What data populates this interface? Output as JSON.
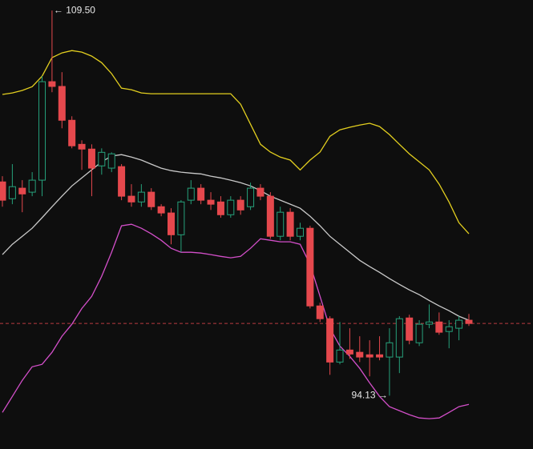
{
  "chart_data": {
    "type": "candlestick",
    "ylim": [
      92.0,
      109.92
    ],
    "up_color": "#26a17b",
    "down_color": "#e5484d",
    "open": [
      102.66,
      101.99,
      102.41,
      102.25,
      102.73,
      106.66,
      106.47,
      105.12,
      104.16,
      103.97,
      103.3,
      103.21,
      103.27,
      102.09,
      101.86,
      102.25,
      101.67,
      101.42,
      100.55,
      101.93,
      102.41,
      101.93,
      101.86,
      101.35,
      101.93,
      101.67,
      102.41,
      102.09,
      100.49,
      101.45,
      100.49,
      100.81,
      97.71,
      97.2,
      95.47,
      95.95,
      95.86,
      95.76,
      95.76,
      95.67,
      95.67,
      97.23,
      96.24,
      96.98,
      97.07,
      96.69,
      96.82,
      97.14
    ],
    "high": [
      102.89,
      103.37,
      102.73,
      103.05,
      106.88,
      109.5,
      107.04,
      105.28,
      104.32,
      104.16,
      104.0,
      103.84,
      103.37,
      102.57,
      102.57,
      102.41,
      101.77,
      101.61,
      101.93,
      102.73,
      102.57,
      102.25,
      102.09,
      102.09,
      102.09,
      102.63,
      102.57,
      102.25,
      101.67,
      101.61,
      101.03,
      100.91,
      97.84,
      97.3,
      97.07,
      96.82,
      96.5,
      96.34,
      96.5,
      96.82,
      97.3,
      97.36,
      97.14,
      97.77,
      97.45,
      97.14,
      97.3,
      97.39
    ],
    "low": [
      101.67,
      101.77,
      101.45,
      102.09,
      102.09,
      106.24,
      104.8,
      104.0,
      103.14,
      102.09,
      102.95,
      103.05,
      101.93,
      101.67,
      101.67,
      101.54,
      101.29,
      100.17,
      99.85,
      101.77,
      101.77,
      101.54,
      101.23,
      101.23,
      101.35,
      101.54,
      101.93,
      100.39,
      100.33,
      100.33,
      100.33,
      97.61,
      97.07,
      94.96,
      95.38,
      95.6,
      95.47,
      94.9,
      95.54,
      94.13,
      95.03,
      96.18,
      96.11,
      96.82,
      96.56,
      96.02,
      96.34,
      96.91
    ],
    "close": [
      101.93,
      102.47,
      102.18,
      102.73,
      106.66,
      106.47,
      105.12,
      104.1,
      103.97,
      103.21,
      103.84,
      103.78,
      102.09,
      101.86,
      102.25,
      101.67,
      101.42,
      100.55,
      101.86,
      102.41,
      101.93,
      101.77,
      101.35,
      101.93,
      101.54,
      102.41,
      102.09,
      100.49,
      101.45,
      100.49,
      100.81,
      97.71,
      97.2,
      95.47,
      95.95,
      95.79,
      95.67,
      95.67,
      95.67,
      96.24,
      97.2,
      96.34,
      96.98,
      97.07,
      96.66,
      96.88,
      97.14,
      97.01
    ],
    "bands": [
      {
        "color": "#e3cf1f",
        "values": [
          106.15,
          106.21,
          106.31,
          106.46,
          106.88,
          107.62,
          107.81,
          107.9,
          107.84,
          107.68,
          107.42,
          106.98,
          106.4,
          106.34,
          106.21,
          106.18,
          106.18,
          106.18,
          106.18,
          106.18,
          106.18,
          106.18,
          106.18,
          106.18,
          105.76,
          104.96,
          104.16,
          103.85,
          103.65,
          103.53,
          103.14,
          103.53,
          103.85,
          104.48,
          104.74,
          104.84,
          104.93,
          105.0,
          104.87,
          104.55,
          104.16,
          103.78,
          103.46,
          103.14,
          102.57,
          101.86,
          101.03,
          100.59
        ]
      },
      {
        "color": "#c9c9c9",
        "values": [
          99.76,
          100.17,
          100.49,
          100.81,
          101.23,
          101.67,
          102.09,
          102.5,
          102.82,
          103.14,
          103.46,
          103.69,
          103.75,
          103.65,
          103.53,
          103.37,
          103.21,
          103.11,
          103.05,
          103.01,
          102.98,
          102.89,
          102.82,
          102.73,
          102.63,
          102.5,
          102.31,
          102.09,
          101.93,
          101.77,
          101.61,
          101.29,
          100.91,
          100.49,
          100.17,
          99.85,
          99.53,
          99.28,
          99.05,
          98.8,
          98.57,
          98.35,
          98.16,
          97.93,
          97.71,
          97.52,
          97.3,
          97.14
        ]
      },
      {
        "color": "#d34fc9",
        "values": [
          93.46,
          94.1,
          94.74,
          95.28,
          95.38,
          95.86,
          96.5,
          96.98,
          97.61,
          98.09,
          98.89,
          99.85,
          100.91,
          100.97,
          100.81,
          100.59,
          100.33,
          100.01,
          99.85,
          99.85,
          99.82,
          99.76,
          99.69,
          99.63,
          99.69,
          100.01,
          100.39,
          100.33,
          100.27,
          100.27,
          100.17,
          99.37,
          98.09,
          96.82,
          96.11,
          95.7,
          95.22,
          94.64,
          94.1,
          93.69,
          93.53,
          93.37,
          93.24,
          93.21,
          93.24,
          93.46,
          93.69,
          93.78
        ]
      }
    ],
    "annotations": [
      {
        "label": "← 109.50",
        "value": 109.5
      },
      {
        "label": "94.13 →",
        "value": 94.13
      }
    ]
  }
}
